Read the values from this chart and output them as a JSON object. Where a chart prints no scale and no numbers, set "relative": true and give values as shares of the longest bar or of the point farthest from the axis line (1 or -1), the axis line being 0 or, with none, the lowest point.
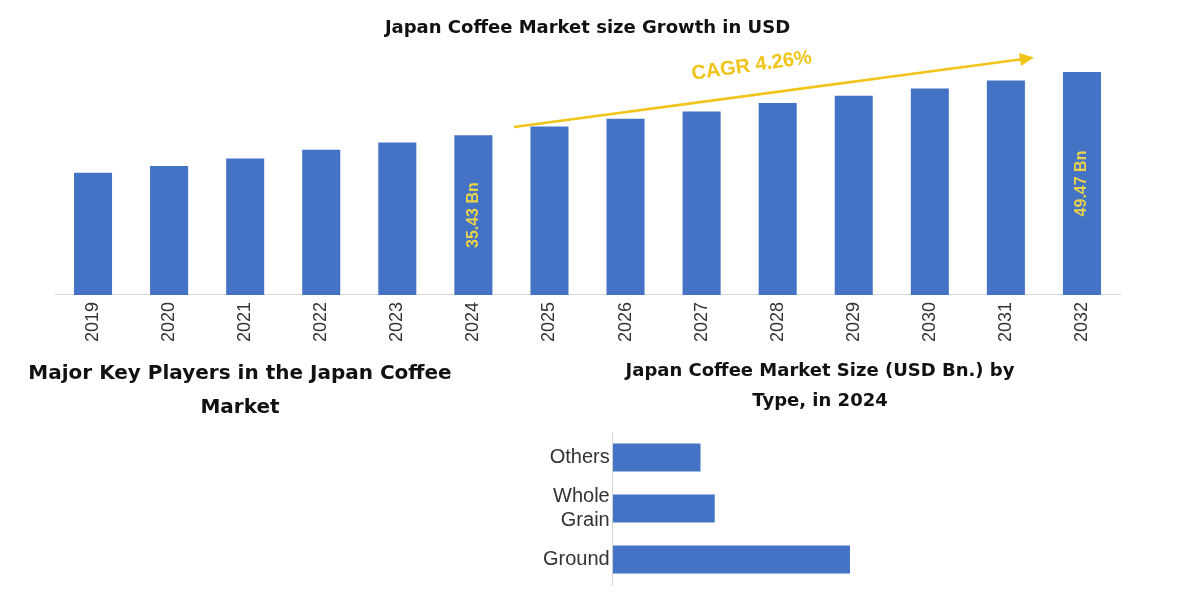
{
  "chart_data": [
    {
      "type": "bar",
      "title": "Japan Coffee Market size Growth in USD",
      "categories": [
        "2019",
        "2020",
        "2021",
        "2022",
        "2023",
        "2024",
        "2025",
        "2026",
        "2027",
        "2028",
        "2029",
        "2030",
        "2031",
        "2032"
      ],
      "values": [
        27.1,
        28.6,
        30.3,
        32.2,
        33.8,
        35.43,
        37.4,
        39.1,
        40.7,
        42.6,
        44.2,
        45.8,
        47.6,
        49.47
      ],
      "color": "#4472c4",
      "tick_labels": "x",
      "value_labels": [
        null,
        null,
        null,
        null,
        null,
        "35.43 Bn",
        null,
        null,
        null,
        null,
        null,
        null,
        null,
        "49.47 Bn"
      ],
      "annotations": [
        "CAGR 4.26%"
      ]
    },
    {
      "type": "other",
      "title": "Major Key Players in the Japan Coffee Market"
    },
    {
      "type": "bar",
      "orientation": "horizontal",
      "relative": true,
      "title": "Japan Coffee Market Size (USD Bn.) by Type, in 2024",
      "categories": [
        "Others",
        "Whole Grain",
        "Ground"
      ],
      "values": [
        0.37,
        0.43,
        1
      ],
      "color": "#4472c4"
    }
  ]
}
